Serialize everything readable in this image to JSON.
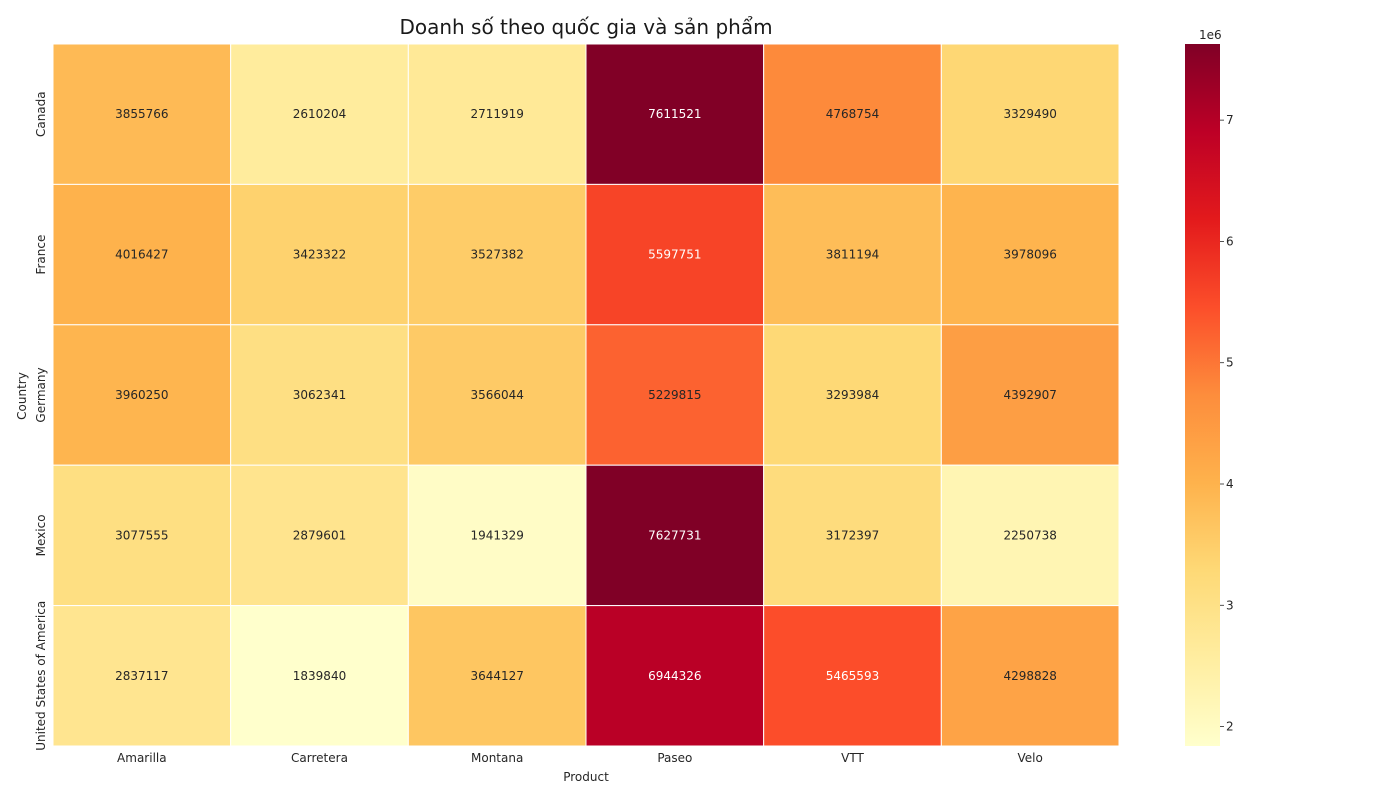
{
  "chart_data": {
    "type": "heatmap",
    "title": "Doanh số theo quốc gia và sản phẩm",
    "xlabel": "Product",
    "ylabel": "Country",
    "x_categories": [
      "Amarilla",
      "Carretera",
      "Montana",
      "Paseo",
      "VTT",
      "Velo"
    ],
    "y_categories": [
      "Canada",
      "France",
      "Germany",
      "Mexico",
      "United States of America"
    ],
    "values": [
      [
        3855766,
        2610204,
        2711919,
        7611521,
        4768754,
        3329490
      ],
      [
        4016427,
        3423322,
        3527382,
        5597751,
        3811194,
        3978096
      ],
      [
        3960250,
        3062341,
        3566044,
        5229815,
        3293984,
        4392907
      ],
      [
        3077555,
        2879601,
        1941329,
        7627731,
        3172397,
        2250738
      ],
      [
        2837117,
        1839840,
        3644127,
        6944326,
        5465593,
        4298828
      ]
    ],
    "colorbar": {
      "colormap": "YlOrRd",
      "range": [
        1839840,
        7627731
      ],
      "ticks": [
        2,
        3,
        4,
        5,
        6,
        7
      ],
      "offset_label": "1e6"
    }
  }
}
